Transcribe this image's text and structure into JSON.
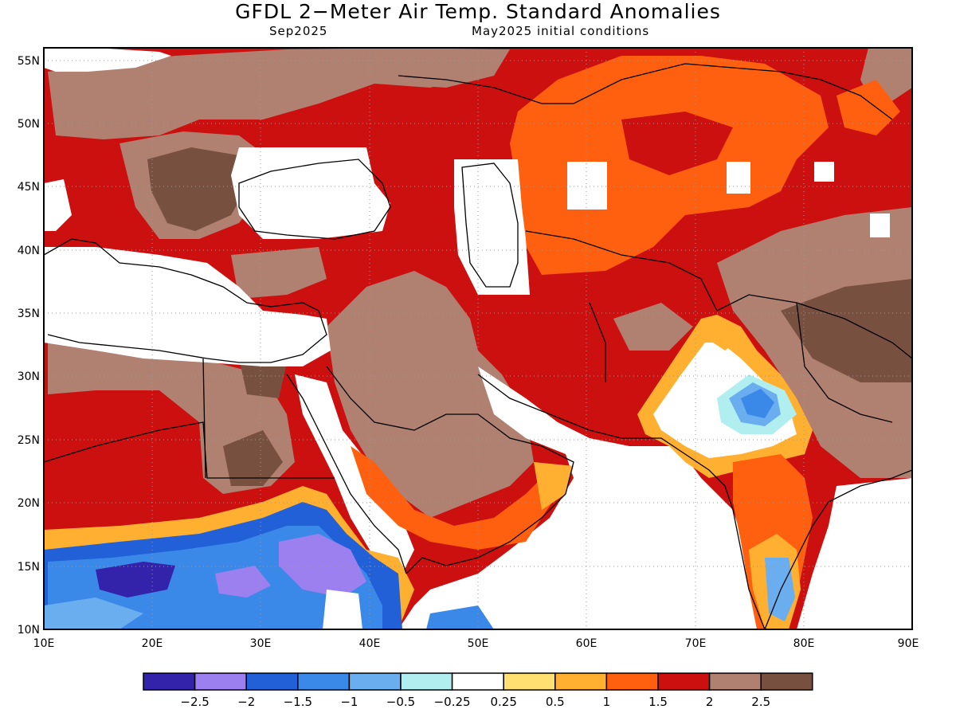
{
  "title": "GFDL 2−Meter Air Temp. Standard Anomalies",
  "subtitle_left": "Sep2025",
  "subtitle_right": "May2025 initial conditions",
  "map": {
    "lon_range": [
      10,
      90
    ],
    "lat_range": [
      10,
      56
    ],
    "lon_ticks": [
      "10E",
      "20E",
      "30E",
      "40E",
      "50E",
      "60E",
      "70E",
      "80E",
      "90E"
    ],
    "lat_ticks": [
      "10N",
      "15N",
      "20N",
      "25N",
      "30N",
      "35N",
      "40N",
      "45N",
      "50N",
      "55N"
    ]
  },
  "colorbar": {
    "colors": [
      "#3322aa",
      "#9d80f0",
      "#2260d8",
      "#3a88e8",
      "#6aaef0",
      "#b0eef0",
      "#ffffff",
      "#ffe070",
      "#ffb030",
      "#ff6010",
      "#cc1010",
      "#b08070",
      "#785040"
    ],
    "labels": [
      "−2.5",
      "−2",
      "−1.5",
      "−1",
      "−0.5",
      "−0.25",
      "0.25",
      "0.5",
      "1",
      "1.5",
      "2",
      "2.5"
    ]
  }
}
